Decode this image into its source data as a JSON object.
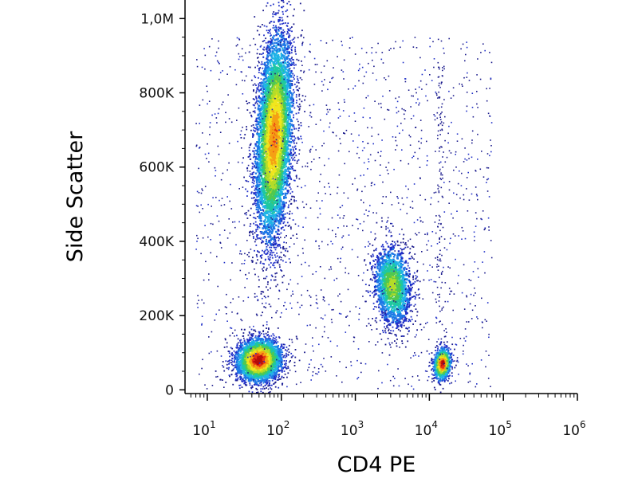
{
  "chart_data": {
    "type": "scatter",
    "subtype": "flow-cytometry-density-dot-plot",
    "title": "",
    "xlabel": "CD4 PE",
    "ylabel": "Side Scatter",
    "x_scale": "log",
    "xlim": [
      5,
      1000000
    ],
    "ylim": [
      -10000,
      1050000
    ],
    "x_ticks": [
      {
        "base": "10",
        "exp": "1",
        "value": 10
      },
      {
        "base": "10",
        "exp": "2",
        "value": 100
      },
      {
        "base": "10",
        "exp": "3",
        "value": 1000
      },
      {
        "base": "10",
        "exp": "4",
        "value": 10000
      },
      {
        "base": "10",
        "exp": "5",
        "value": 100000
      },
      {
        "base": "10",
        "exp": "6",
        "value": 1000000
      }
    ],
    "y_ticks": [
      {
        "label": "0",
        "value": 0
      },
      {
        "label": "200K",
        "value": 200000
      },
      {
        "label": "400K",
        "value": 400000
      },
      {
        "label": "600K",
        "value": 600000
      },
      {
        "label": "800K",
        "value": 800000
      },
      {
        "label": "1,0M",
        "value": 1000000
      }
    ],
    "grid": false,
    "legend": "none",
    "colormap": [
      "#1a1a8c",
      "#2030c8",
      "#1e78e6",
      "#20b4e6",
      "#1ec8a0",
      "#50c850",
      "#b4dc28",
      "#f0e61e",
      "#f5a014",
      "#e63214",
      "#b40a0a"
    ],
    "populations": [
      {
        "center_x": 80,
        "center_y": 680000,
        "sd_log_x": 0.13,
        "sd_y": 140000,
        "tilt": 0.9,
        "events": 5200,
        "peak": 0.85
      },
      {
        "center_x": 50,
        "center_y": 80000,
        "sd_log_x": 0.16,
        "sd_y": 30000,
        "tilt": 0.2,
        "events": 2600,
        "peak": 1.0
      },
      {
        "center_x": 3200,
        "center_y": 280000,
        "sd_log_x": 0.13,
        "sd_y": 55000,
        "tilt": -0.5,
        "events": 1500,
        "peak": 0.6
      },
      {
        "center_x": 15000,
        "center_y": 70000,
        "sd_log_x": 0.06,
        "sd_y": 22000,
        "tilt": 0.5,
        "events": 700,
        "peak": 1.0
      }
    ]
  }
}
